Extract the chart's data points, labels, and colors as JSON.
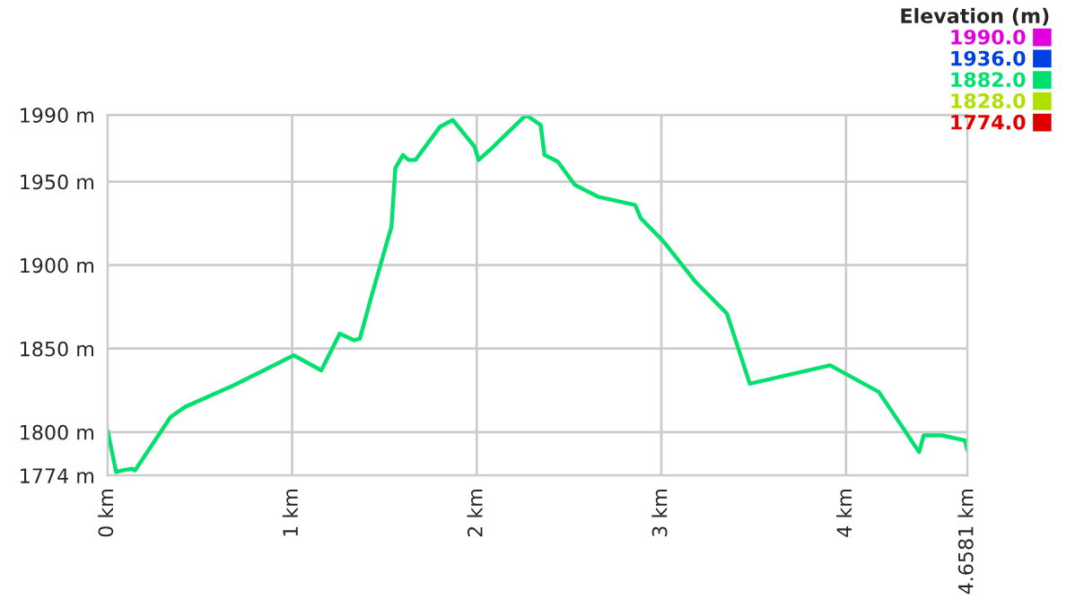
{
  "chart_data": {
    "type": "line",
    "clabel": "Elevation (m)",
    "clim": [
      1774,
      1990
    ],
    "cticks": [
      {
        "value": 1990,
        "label": "1990.0"
      },
      {
        "value": 1936,
        "label": "1936.0"
      },
      {
        "value": 1882,
        "label": "1882.0"
      },
      {
        "value": 1828,
        "label": "1828.0"
      },
      {
        "value": 1774,
        "label": "1774.0"
      }
    ],
    "colors": [
      "#e000e0",
      "#0040e0",
      "#00e070",
      "#b0e000",
      "#e00000"
    ],
    "series": [
      {
        "x": [
          0,
          0.047,
          0.078,
          0.133,
          0.149,
          0.342,
          0.419,
          0.683,
          1.009,
          1.158,
          1.258,
          1.336,
          1.367,
          1.429,
          1.522,
          1.538,
          1.559,
          1.6,
          1.631,
          1.668,
          1.802,
          1.87,
          1.988,
          2.01,
          2.081,
          2.267,
          2.346,
          2.367,
          2.439,
          2.532,
          2.656,
          2.858,
          2.889,
          3.013,
          3.185,
          3.355,
          3.479,
          3.914,
          4.178,
          4.318,
          4.396,
          4.421,
          4.52,
          4.644,
          4.6581
        ],
        "values": [
          1801,
          1776,
          1777,
          1778,
          1777,
          1809,
          1815,
          1828,
          1846,
          1837,
          1859,
          1855,
          1856,
          1881,
          1917,
          1923,
          1958,
          1966,
          1963,
          1963,
          1983,
          1987,
          1971,
          1963,
          1970,
          1990,
          1984,
          1966,
          1962,
          1948,
          1941,
          1936,
          1928,
          1914,
          1890,
          1871,
          1829,
          1840,
          1824,
          1801,
          1788,
          1798,
          1798,
          1795,
          1789
        ]
      }
    ],
    "xlim": [
      0,
      4.6581
    ],
    "xticks": [
      {
        "value": 0,
        "label": "0 km"
      },
      {
        "value": 1,
        "label": "1 km"
      },
      {
        "value": 2,
        "label": "2 km"
      },
      {
        "value": 3,
        "label": "3 km"
      },
      {
        "value": 4,
        "label": "4 km"
      },
      {
        "value": 4.6581,
        "label": "4.6581 km"
      }
    ],
    "ylim": [
      1774,
      1990
    ],
    "yticks": [
      {
        "value": 1774,
        "label": "1774 m"
      },
      {
        "value": 1800,
        "label": "1800 m"
      },
      {
        "value": 1850,
        "label": "1850 m"
      },
      {
        "value": 1900,
        "label": "1900 m"
      },
      {
        "value": 1950,
        "label": "1950 m"
      },
      {
        "value": 1990,
        "label": "1990 m"
      }
    ],
    "grid": true
  }
}
